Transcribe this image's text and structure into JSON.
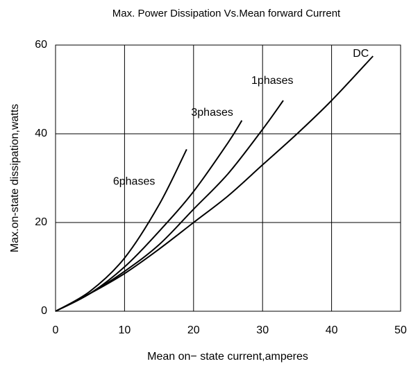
{
  "chart_data": {
    "type": "line",
    "title": "Max. Power Dissipation Vs.Mean forward Current",
    "xlabel": "Mean on− state current,amperes",
    "ylabel": "Max.on-state dissipation,watts",
    "xlim": [
      0,
      50
    ],
    "xticks": [
      0,
      10,
      20,
      30,
      40,
      50
    ],
    "ylim": [
      0,
      60
    ],
    "yticks": [
      0,
      20,
      40,
      60
    ],
    "grid": true,
    "series": [
      {
        "name": "6phases",
        "color": "#000000",
        "x": [
          0,
          5,
          10,
          15,
          19
        ],
        "values": [
          0,
          4.5,
          12,
          24,
          36.5
        ]
      },
      {
        "name": "3phases",
        "color": "#000000",
        "x": [
          0,
          5,
          10,
          15,
          20,
          25,
          27
        ],
        "values": [
          0,
          4,
          10,
          18,
          27,
          38,
          43
        ]
      },
      {
        "name": "1phases",
        "color": "#000000",
        "x": [
          0,
          5,
          10,
          15,
          20,
          25,
          30,
          33
        ],
        "values": [
          0,
          4,
          9,
          15,
          23,
          31,
          41,
          47.5
        ]
      },
      {
        "name": "DC",
        "color": "#000000",
        "x": [
          0,
          5,
          10,
          15,
          20,
          25,
          30,
          35,
          40,
          46
        ],
        "values": [
          0,
          4,
          8.5,
          14,
          20,
          26,
          33,
          40,
          47.5,
          57.5
        ]
      }
    ]
  }
}
